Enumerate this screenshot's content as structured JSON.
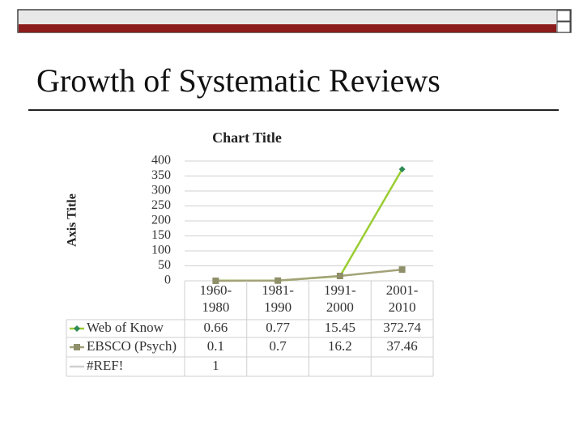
{
  "title": "Growth of Systematic Reviews",
  "chart_data": {
    "type": "line",
    "title": "Chart Title",
    "y_label": "Axis Title",
    "categories": [
      "1960-1980",
      "1981-1990",
      "1991-2000",
      "2001-2010"
    ],
    "series": [
      {
        "name": "Web of Know",
        "color": "#9acd32",
        "marker_color": "#2e8b57",
        "marker": "diamond",
        "values": [
          0.66,
          0.77,
          15.45,
          372.74
        ]
      },
      {
        "name": "EBSCO (Psych)",
        "color": "#a3a37a",
        "marker_color": "#8f8f6a",
        "marker": "square",
        "values": [
          0.1,
          0.7,
          16.2,
          37.46
        ]
      },
      {
        "name": "#REF!",
        "color": "#cfcfcf",
        "marker_color": "#cfcfcf",
        "marker": "none",
        "values": [
          1,
          null,
          null,
          null
        ]
      }
    ],
    "ylim": [
      0,
      400
    ],
    "yticks": [
      0,
      50,
      100,
      150,
      200,
      250,
      300,
      350,
      400
    ],
    "grid": true,
    "data_table": true
  }
}
